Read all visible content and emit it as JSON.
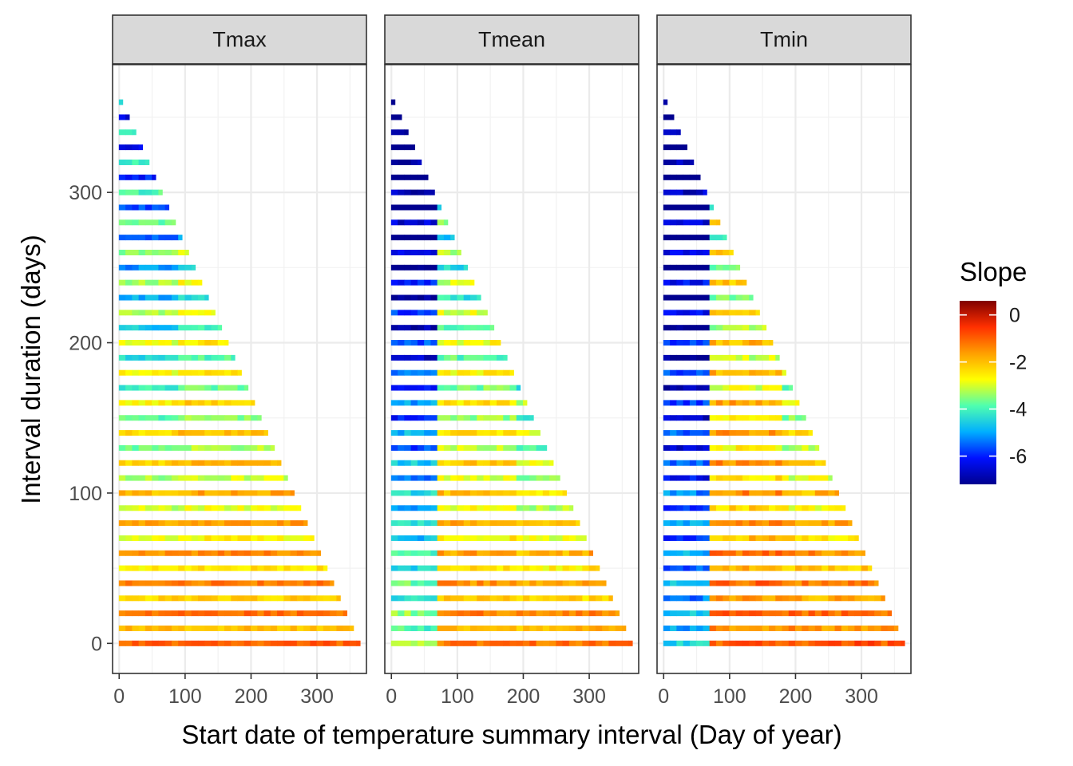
{
  "chart_data": {
    "type": "heatmap",
    "facets": [
      "Tmax",
      "Tmean",
      "Tmin"
    ],
    "xlabel": "Start date of temperature summary interval (Day of year)",
    "ylabel": "Interval duration (days)",
    "xlim": [
      -10,
      375
    ],
    "ylim": [
      -20,
      385
    ],
    "x_ticks": [
      0,
      100,
      200,
      300
    ],
    "y_ticks": [
      0,
      100,
      200,
      300
    ],
    "row_spacing_days": 10,
    "start_step_days": 10,
    "legend": {
      "title": "Slope",
      "range": [
        -7.2,
        0.6
      ],
      "ticks": [
        0,
        -2,
        -4,
        -6
      ],
      "colors": [
        "#00008F",
        "#0010FF",
        "#00AFFF",
        "#4FFFAF",
        "#FFFF00",
        "#FF9F00",
        "#FF3000",
        "#800000"
      ]
    },
    "description": "Each row is an interval duration (0 to 360 days, step 10); each cell is a start day (0 to 365 - duration). Slope values approximate the colour field in the original figure.",
    "panel_summaries": [
      {
        "facet": "Tmax",
        "short_interval_slope": -0.8,
        "long_interval_slope_range": [
          -4.5,
          -3.0
        ]
      },
      {
        "facet": "Tmean",
        "short_interval_slope": -1.2,
        "long_interval_slope_range": [
          -7.0,
          -3.5
        ]
      },
      {
        "facet": "Tmin",
        "short_interval_slope": -0.7,
        "long_interval_slope_range": [
          -6.3,
          -2.5
        ]
      }
    ]
  }
}
